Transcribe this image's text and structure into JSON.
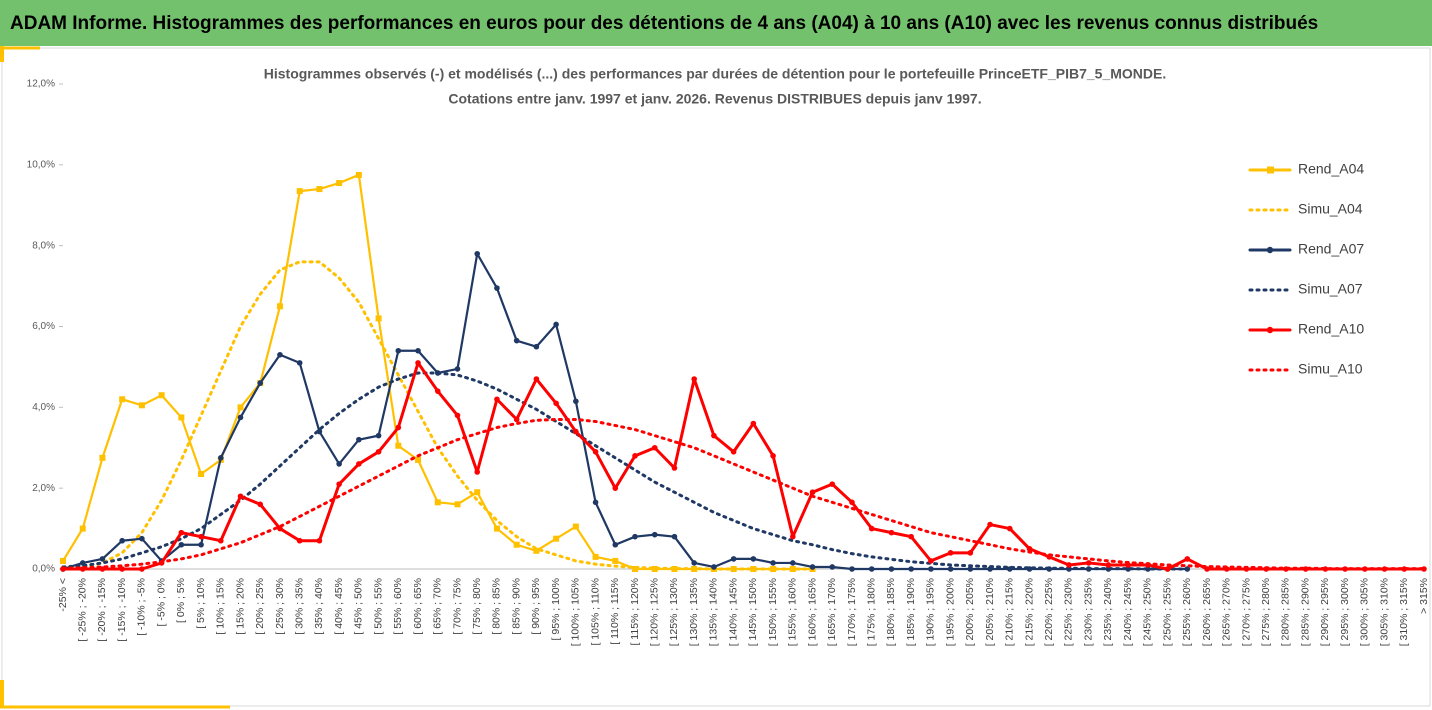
{
  "header": {
    "title": "ADAM Informe. Histogrammes des performances en euros pour des détentions de 4 ans (A04) à 10 ans (A10) avec les revenus connus distribués"
  },
  "chart_data": {
    "type": "line",
    "title": [
      "Histogrammes observés (-) et modélisés (...) des performances par durées de détention pour le portefeuille PrinceETF_PIB7_5_MONDE.",
      "Cotations entre janv. 1997 et janv. 2026. Revenus DISTRIBUES depuis janv 1997."
    ],
    "categories": [
      "-25% <",
      "[ -25% ; -20%",
      "[ -20% ; -15%",
      "[ -15% ; -10%",
      "[ -10% ; -5%",
      "[ -5% ; 0%",
      "[ 0% ; 5%",
      "[ 5% ; 10%",
      "[ 10% ; 15%",
      "[ 15% ; 20%",
      "[ 20% ; 25%",
      "[ 25% ; 30%",
      "[ 30% ; 35%",
      "[ 35% ; 40%",
      "[ 40% ; 45%",
      "[ 45% ; 50%",
      "[ 50% ; 55%",
      "[ 55% ; 60%",
      "[ 60% ; 65%",
      "[ 65% ; 70%",
      "[ 70% ; 75%",
      "[ 75% ; 80%",
      "[ 80% ; 85%",
      "[ 85% ; 90%",
      "[ 90% ; 95%",
      "[ 95% ; 100%",
      "[ 100% ; 105%",
      "[ 105% ; 110%",
      "[ 110% ; 115%",
      "[ 115% ; 120%",
      "[ 120% ; 125%",
      "[ 125% ; 130%",
      "[ 130% ; 135%",
      "[ 135% ; 140%",
      "[ 140% ; 145%",
      "[ 145% ; 150%",
      "[ 150% ; 155%",
      "[ 155% ; 160%",
      "[ 160% ; 165%",
      "[ 165% ; 170%",
      "[ 170% ; 175%",
      "[ 175% ; 180%",
      "[ 180% ; 185%",
      "[ 185% ; 190%",
      "[ 190% ; 195%",
      "[ 195% ; 200%",
      "[ 200% ; 205%",
      "[ 205% ; 210%",
      "[ 210% ; 215%",
      "[ 215% ; 220%",
      "[ 220% ; 225%",
      "[ 225% ; 230%",
      "[ 230% ; 235%",
      "[ 235% ; 240%",
      "[ 240% ; 245%",
      "[ 245% ; 250%",
      "[ 250% ; 255%",
      "[ 255% ; 260%",
      "[ 260% ; 265%",
      "[ 265% ; 270%",
      "[ 270% ; 275%",
      "[ 275% ; 280%",
      "[ 280% ; 285%",
      "[ 285% ; 290%",
      "[ 290% ; 295%",
      "[ 295% ; 300%",
      "[ 300% ; 305%",
      "[ 305% ; 310%",
      "[ 310% ; 315%",
      "> 315%"
    ],
    "series": [
      {
        "name": "Rend_A04",
        "color": "#ffc000",
        "style": "solid",
        "marker": "square",
        "values": [
          0.2,
          1.0,
          2.75,
          4.2,
          4.05,
          4.3,
          3.75,
          2.35,
          2.7,
          4.0,
          4.6,
          6.5,
          9.35,
          9.4,
          9.55,
          9.75,
          6.2,
          3.05,
          2.7,
          1.65,
          1.6,
          1.9,
          1.0,
          0.6,
          0.45,
          0.75,
          1.05,
          0.3,
          0.2,
          0,
          0,
          0,
          0,
          0,
          0,
          0,
          0,
          0,
          0,
          null,
          null,
          null,
          null,
          null,
          null,
          null,
          null,
          null,
          null,
          null,
          null,
          null,
          null,
          null,
          null,
          null,
          null,
          null,
          null,
          null,
          null,
          null,
          null,
          null,
          null,
          null,
          null,
          null,
          null,
          null
        ]
      },
      {
        "name": "Simu_A04",
        "color": "#ffc000",
        "style": "dotted",
        "values": [
          0,
          0.05,
          0.15,
          0.4,
          0.9,
          1.7,
          2.7,
          3.8,
          4.9,
          6.0,
          6.8,
          7.4,
          7.6,
          7.6,
          7.2,
          6.6,
          5.7,
          4.8,
          3.9,
          3.0,
          2.3,
          1.7,
          1.2,
          0.8,
          0.5,
          0.35,
          0.2,
          0.12,
          0.07,
          0.04,
          0.02,
          0.01,
          0.01,
          0,
          0,
          0,
          0,
          0,
          0,
          null,
          null,
          null,
          null,
          null,
          null,
          null,
          null,
          null,
          null,
          null,
          null,
          null,
          null,
          null,
          null,
          null,
          null,
          null,
          null,
          null,
          null,
          null,
          null,
          null,
          null,
          null,
          null,
          null,
          null,
          null
        ]
      },
      {
        "name": "Rend_A07",
        "color": "#1f3864",
        "style": "solid",
        "marker": "circle",
        "values": [
          0,
          0.15,
          0.25,
          0.7,
          0.75,
          0.2,
          0.6,
          0.6,
          2.75,
          3.75,
          4.6,
          5.3,
          5.1,
          3.4,
          2.6,
          3.2,
          3.3,
          5.4,
          5.4,
          4.85,
          4.95,
          7.8,
          6.95,
          5.65,
          5.5,
          6.05,
          4.15,
          1.65,
          0.6,
          0.8,
          0.85,
          0.8,
          0.15,
          0.05,
          0.25,
          0.25,
          0.15,
          0.15,
          0.05,
          0.05,
          0,
          0,
          0,
          0,
          0,
          0,
          0,
          0,
          0,
          0,
          0,
          0,
          0,
          0,
          0,
          0,
          0,
          0,
          null,
          null,
          null,
          null,
          null,
          null,
          null,
          null,
          null,
          null,
          null,
          null
        ]
      },
      {
        "name": "Simu_A07",
        "color": "#1f3864",
        "style": "dotted",
        "values": [
          0.05,
          0.08,
          0.15,
          0.25,
          0.4,
          0.55,
          0.75,
          1.0,
          1.35,
          1.7,
          2.1,
          2.55,
          3.0,
          3.45,
          3.85,
          4.2,
          4.5,
          4.7,
          4.85,
          4.85,
          4.8,
          4.65,
          4.45,
          4.2,
          3.95,
          3.65,
          3.35,
          3.05,
          2.75,
          2.45,
          2.15,
          1.9,
          1.65,
          1.4,
          1.2,
          1.0,
          0.85,
          0.7,
          0.6,
          0.48,
          0.38,
          0.3,
          0.24,
          0.18,
          0.14,
          0.1,
          0.08,
          0.06,
          0.04,
          0.03,
          0.02,
          0.02,
          0.01,
          0.01,
          0.01,
          0,
          0,
          0,
          null,
          null,
          null,
          null,
          null,
          null,
          null,
          null,
          null,
          null,
          null,
          null
        ]
      },
      {
        "name": "Rend_A10",
        "color": "#ff0000",
        "style": "solid",
        "marker": "circle",
        "values": [
          0,
          0,
          0,
          0,
          0,
          0.15,
          0.9,
          0.8,
          0.7,
          1.8,
          1.6,
          1.0,
          0.7,
          0.7,
          2.1,
          2.6,
          2.9,
          3.5,
          5.1,
          4.4,
          3.8,
          2.4,
          4.2,
          3.7,
          4.7,
          4.1,
          3.4,
          2.9,
          2.0,
          2.8,
          3.0,
          2.5,
          4.7,
          3.3,
          2.9,
          3.6,
          2.8,
          0.8,
          1.9,
          2.1,
          1.65,
          1.0,
          0.9,
          0.8,
          0.2,
          0.4,
          0.4,
          1.1,
          1.0,
          0.5,
          0.3,
          0.1,
          0.15,
          0.1,
          0.1,
          0.1,
          0,
          0.25,
          0,
          0,
          0,
          0,
          0,
          0,
          0,
          0,
          0,
          0,
          0,
          0
        ]
      },
      {
        "name": "Simu_A10",
        "color": "#ff0000",
        "style": "dotted",
        "values": [
          0.02,
          0.03,
          0.05,
          0.08,
          0.12,
          0.18,
          0.25,
          0.35,
          0.5,
          0.65,
          0.85,
          1.05,
          1.3,
          1.55,
          1.8,
          2.05,
          2.3,
          2.55,
          2.8,
          3.0,
          3.2,
          3.35,
          3.5,
          3.6,
          3.68,
          3.7,
          3.7,
          3.65,
          3.55,
          3.45,
          3.3,
          3.15,
          3.0,
          2.8,
          2.6,
          2.4,
          2.2,
          2.0,
          1.8,
          1.65,
          1.5,
          1.35,
          1.2,
          1.05,
          0.9,
          0.8,
          0.7,
          0.6,
          0.5,
          0.42,
          0.35,
          0.3,
          0.25,
          0.2,
          0.16,
          0.13,
          0.1,
          0.08,
          0.06,
          0.05,
          0.04,
          0.03,
          0.02,
          0.02,
          0.01,
          0.01,
          0.01,
          0.01,
          0.01,
          0.01
        ]
      }
    ],
    "ylim": [
      0,
      12
    ],
    "yticks": [
      {
        "value": 0,
        "label": "0,0%"
      },
      {
        "value": 2,
        "label": "2,0%"
      },
      {
        "value": 4,
        "label": "4,0%"
      },
      {
        "value": 6,
        "label": "6,0%"
      },
      {
        "value": 8,
        "label": "8,0%"
      },
      {
        "value": 10,
        "label": "10,0%"
      },
      {
        "value": 12,
        "label": "12,0%"
      }
    ],
    "grid": false,
    "legend": "right"
  }
}
